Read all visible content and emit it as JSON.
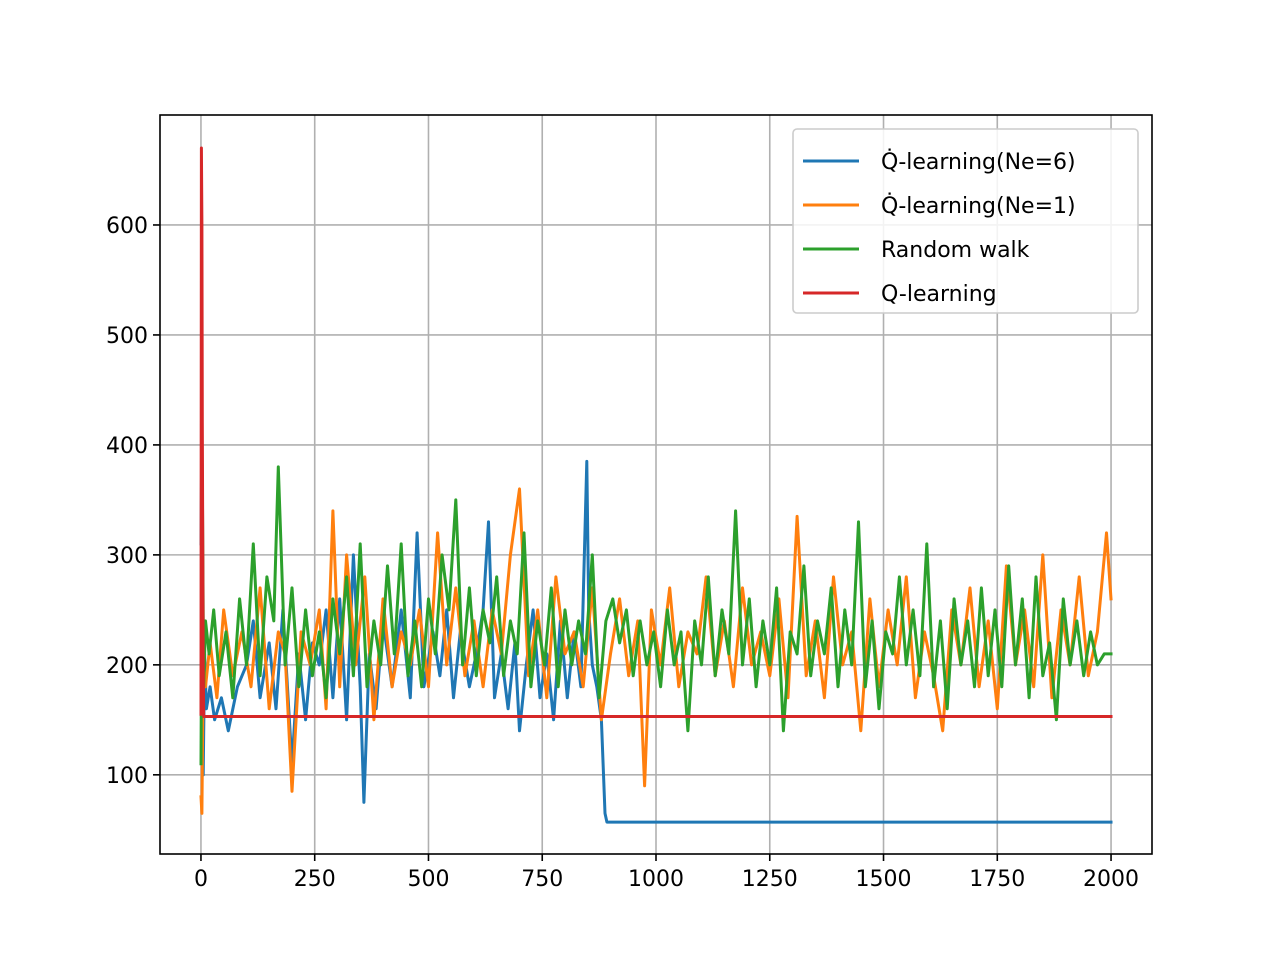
{
  "chart_data": {
    "type": "line",
    "title": "",
    "xlabel": "",
    "ylabel": "",
    "xlim": [
      -90,
      2090
    ],
    "ylim": [
      28,
      700
    ],
    "x_ticks": [
      "0",
      "250",
      "500",
      "750",
      "1000",
      "1250",
      "1500",
      "1750",
      "2000"
    ],
    "y_ticks": [
      "100",
      "200",
      "300",
      "400",
      "500",
      "600"
    ],
    "grid": true,
    "legend_position": "top-right",
    "series": [
      {
        "name": "Q̇-learning(Ne=6)",
        "color": "#1f77b4",
        "x": [
          0,
          2,
          5,
          8,
          12,
          20,
          30,
          45,
          60,
          80,
          100,
          115,
          130,
          150,
          165,
          180,
          200,
          215,
          230,
          245,
          260,
          275,
          290,
          305,
          320,
          335,
          350,
          358,
          370,
          385,
          400,
          420,
          440,
          460,
          475,
          490,
          510,
          525,
          540,
          555,
          570,
          590,
          605,
          620,
          632,
          645,
          660,
          675,
          690,
          700,
          715,
          730,
          745,
          760,
          775,
          790,
          805,
          820,
          835,
          848,
          852,
          860,
          870,
          880,
          888,
          892,
          900,
          1000,
          1250,
          1500,
          1750,
          2000
        ],
        "y": [
          310,
          420,
          100,
          210,
          160,
          180,
          150,
          170,
          140,
          180,
          200,
          240,
          170,
          220,
          160,
          250,
          110,
          210,
          150,
          220,
          200,
          250,
          170,
          260,
          150,
          300,
          180,
          75,
          210,
          160,
          240,
          180,
          250,
          170,
          320,
          180,
          230,
          190,
          250,
          170,
          230,
          180,
          210,
          250,
          330,
          170,
          210,
          160,
          220,
          140,
          200,
          250,
          170,
          210,
          150,
          240,
          170,
          230,
          180,
          385,
          250,
          200,
          180,
          150,
          65,
          57,
          57,
          57,
          57,
          57,
          57,
          57
        ]
      },
      {
        "name": "Q̇-learning(Ne=1)",
        "color": "#ff7f0e",
        "x": [
          0,
          2,
          5,
          10,
          20,
          35,
          50,
          70,
          90,
          110,
          130,
          150,
          170,
          185,
          200,
          220,
          240,
          260,
          275,
          290,
          305,
          320,
          340,
          360,
          380,
          400,
          420,
          440,
          460,
          480,
          500,
          520,
          540,
          560,
          580,
          600,
          620,
          640,
          660,
          680,
          700,
          720,
          740,
          760,
          780,
          800,
          820,
          840,
          860,
          880,
          900,
          920,
          940,
          960,
          975,
          990,
          1010,
          1030,
          1050,
          1070,
          1090,
          1110,
          1130,
          1150,
          1170,
          1190,
          1210,
          1230,
          1250,
          1270,
          1290,
          1310,
          1330,
          1350,
          1370,
          1390,
          1410,
          1430,
          1450,
          1470,
          1490,
          1510,
          1530,
          1550,
          1570,
          1590,
          1610,
          1630,
          1650,
          1670,
          1690,
          1710,
          1730,
          1750,
          1770,
          1790,
          1810,
          1830,
          1850,
          1870,
          1890,
          1910,
          1930,
          1950,
          1970,
          1990,
          2000
        ],
        "y": [
          80,
          65,
          200,
          180,
          220,
          170,
          250,
          190,
          230,
          180,
          270,
          160,
          230,
          210,
          85,
          230,
          200,
          250,
          160,
          340,
          180,
          300,
          200,
          280,
          150,
          260,
          180,
          230,
          200,
          250,
          180,
          320,
          200,
          270,
          190,
          240,
          180,
          250,
          210,
          300,
          360,
          190,
          250,
          170,
          280,
          210,
          230,
          180,
          270,
          150,
          210,
          260,
          190,
          240,
          90,
          250,
          200,
          270,
          180,
          230,
          210,
          280,
          190,
          240,
          180,
          270,
          200,
          230,
          190,
          260,
          170,
          335,
          190,
          240,
          170,
          280,
          200,
          230,
          140,
          260,
          180,
          250,
          200,
          280,
          170,
          230,
          190,
          140,
          250,
          200,
          270,
          180,
          240,
          160,
          290,
          200,
          250,
          180,
          300,
          170,
          250,
          200,
          280,
          190,
          230,
          320,
          260
        ]
      },
      {
        "name": "Random walk",
        "color": "#2ca02c",
        "x": [
          0,
          3,
          6,
          10,
          18,
          28,
          40,
          55,
          70,
          85,
          100,
          115,
          130,
          145,
          160,
          170,
          185,
          200,
          215,
          230,
          245,
          260,
          275,
          290,
          305,
          320,
          335,
          350,
          365,
          380,
          395,
          410,
          425,
          440,
          455,
          470,
          485,
          500,
          515,
          530,
          545,
          560,
          575,
          590,
          605,
          620,
          635,
          650,
          665,
          680,
          695,
          710,
          725,
          740,
          755,
          770,
          785,
          800,
          815,
          830,
          845,
          860,
          875,
          890,
          905,
          920,
          935,
          950,
          965,
          980,
          995,
          1010,
          1025,
          1040,
          1055,
          1070,
          1085,
          1100,
          1115,
          1130,
          1145,
          1160,
          1175,
          1190,
          1205,
          1220,
          1235,
          1250,
          1265,
          1280,
          1295,
          1310,
          1325,
          1340,
          1355,
          1370,
          1385,
          1400,
          1415,
          1430,
          1445,
          1460,
          1475,
          1490,
          1505,
          1520,
          1535,
          1550,
          1565,
          1580,
          1595,
          1610,
          1625,
          1640,
          1655,
          1670,
          1685,
          1700,
          1715,
          1730,
          1745,
          1760,
          1775,
          1790,
          1805,
          1820,
          1835,
          1850,
          1865,
          1880,
          1895,
          1910,
          1925,
          1940,
          1955,
          1970,
          1985,
          2000
        ],
        "y": [
          110,
          370,
          180,
          240,
          210,
          250,
          190,
          230,
          170,
          260,
          200,
          310,
          190,
          280,
          240,
          380,
          200,
          270,
          180,
          250,
          190,
          230,
          170,
          260,
          210,
          280,
          190,
          310,
          180,
          240,
          200,
          290,
          210,
          310,
          190,
          240,
          180,
          260,
          210,
          300,
          250,
          350,
          200,
          270,
          190,
          250,
          220,
          280,
          190,
          240,
          210,
          320,
          180,
          240,
          200,
          270,
          180,
          250,
          200,
          240,
          210,
          300,
          170,
          240,
          260,
          220,
          250,
          190,
          240,
          200,
          230,
          180,
          250,
          200,
          230,
          140,
          240,
          200,
          280,
          190,
          250,
          210,
          340,
          200,
          260,
          180,
          240,
          200,
          270,
          140,
          230,
          210,
          290,
          190,
          240,
          210,
          270,
          180,
          250,
          200,
          330,
          180,
          240,
          160,
          230,
          210,
          280,
          200,
          250,
          190,
          310,
          180,
          240,
          160,
          260,
          200,
          240,
          180,
          270,
          190,
          250,
          180,
          290,
          200,
          260,
          170,
          280,
          190,
          220,
          150,
          260,
          200,
          240,
          190,
          230,
          200,
          210,
          210
        ]
      },
      {
        "name": "Q-learning",
        "color": "#d62728",
        "x": [
          0,
          1,
          2,
          3,
          4,
          5,
          6,
          2000
        ],
        "y": [
          155,
          670,
          600,
          420,
          300,
          200,
          153,
          153
        ]
      }
    ]
  }
}
